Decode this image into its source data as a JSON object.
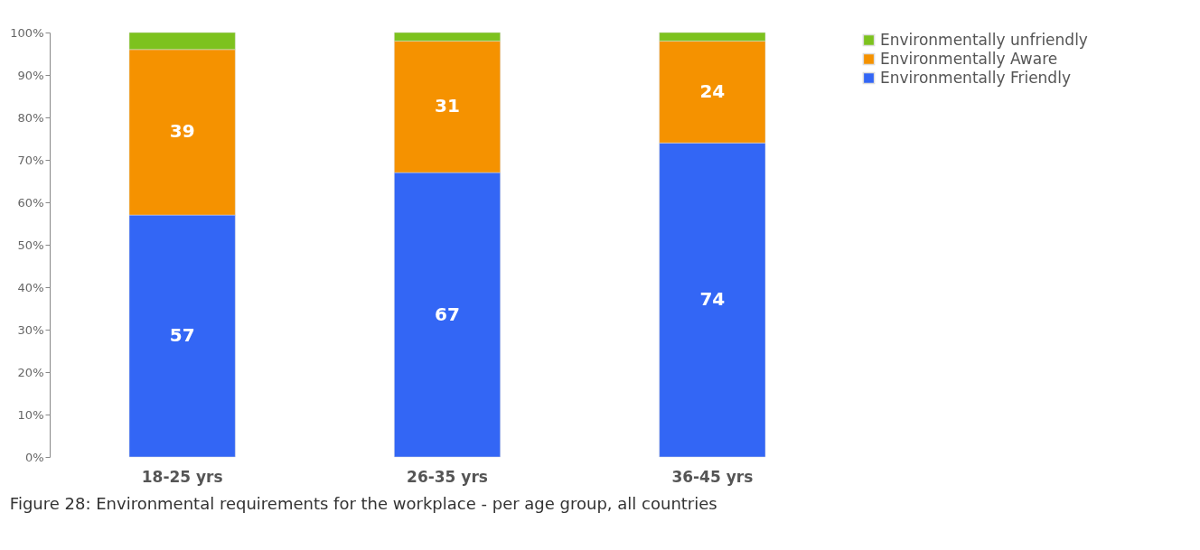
{
  "chart_data": {
    "type": "bar",
    "stacked": true,
    "categories": [
      "18-25 yrs",
      "26-35 yrs",
      "36-45 yrs"
    ],
    "series": [
      {
        "name": "Environmentally Friendly",
        "color": "#3366f5",
        "values": [
          57,
          67,
          74
        ],
        "value_labels": [
          "57",
          "67",
          "74"
        ]
      },
      {
        "name": "Environmentally Aware",
        "color": "#f59200",
        "values": [
          39,
          31,
          24
        ],
        "value_labels": [
          "39",
          "31",
          "24"
        ]
      },
      {
        "name": "Environmentally unfriendly",
        "color": "#7dc21e",
        "values": [
          4,
          2,
          2
        ],
        "value_labels": [
          null,
          null,
          null
        ]
      }
    ],
    "ylim": [
      0,
      100
    ],
    "yticks": [
      {
        "value": 0,
        "label": "0%"
      },
      {
        "value": 10,
        "label": "10%"
      },
      {
        "value": 20,
        "label": "20%"
      },
      {
        "value": 30,
        "label": "30%"
      },
      {
        "value": 40,
        "label": "40%"
      },
      {
        "value": 50,
        "label": "50%"
      },
      {
        "value": 60,
        "label": "60%"
      },
      {
        "value": 70,
        "label": "70%"
      },
      {
        "value": 80,
        "label": "80%"
      },
      {
        "value": 90,
        "label": "90%"
      },
      {
        "value": 100,
        "label": "100%"
      }
    ],
    "grid": false,
    "legend": "right",
    "annotations": [
      "Figure 28: Environmental requirements for the workplace - per age group, all countries"
    ]
  }
}
